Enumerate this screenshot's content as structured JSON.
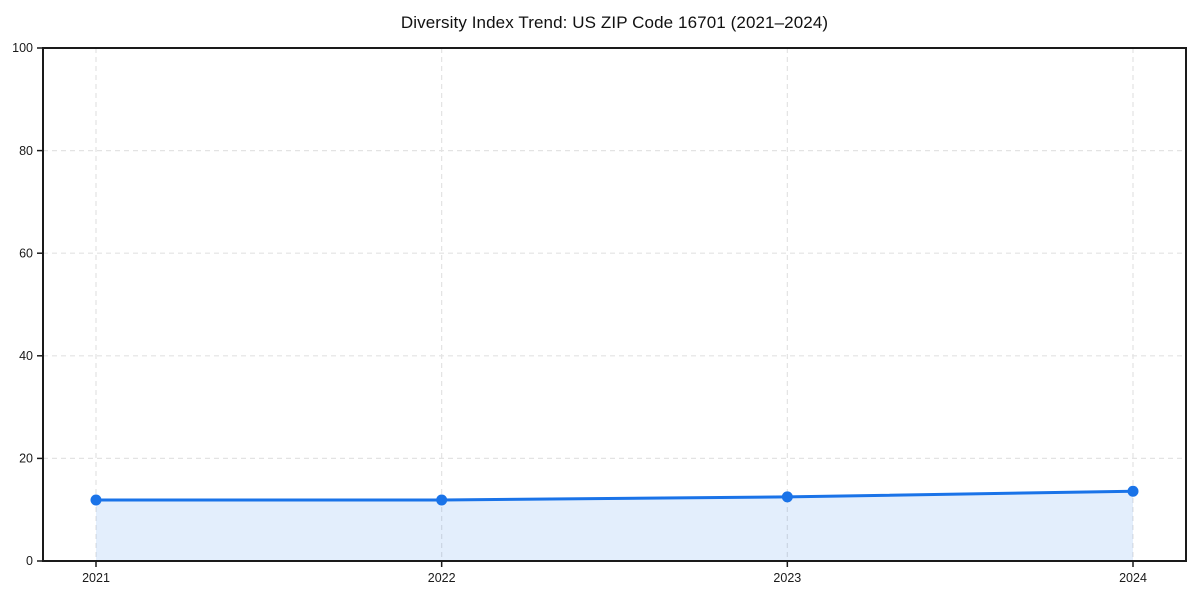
{
  "page": {
    "background": "#ffffff"
  },
  "chart_data": {
    "type": "line",
    "title": "Diversity Index Trend: US ZIP Code 16701 (2021–2024)",
    "categories": [
      "2021",
      "2022",
      "2023",
      "2024"
    ],
    "series": [
      {
        "name": "Diversity Index",
        "values": [
          11.9,
          11.9,
          12.5,
          13.6
        ]
      }
    ],
    "xlabel": "",
    "ylabel": "",
    "ylim": [
      0,
      100
    ],
    "yticks": [
      0,
      20,
      40,
      60,
      80,
      100
    ],
    "grid": true,
    "grid_style": "dashed",
    "legend": false,
    "area_fill": true,
    "marker": "circle",
    "colors": {
      "line": "#1a73e8",
      "fill": "rgba(26,115,232,0.12)",
      "grid": "#e3e3e3",
      "axis": "#1a1a1a",
      "tick_label": "#1a1a1a",
      "title": "#111111"
    }
  }
}
